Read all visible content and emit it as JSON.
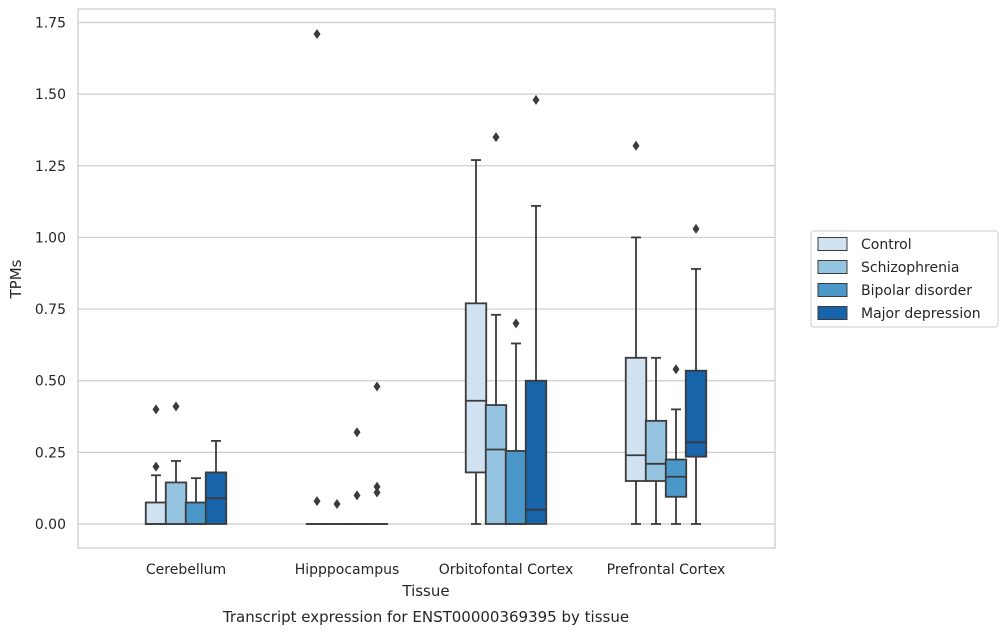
{
  "chart_data": {
    "type": "box",
    "title": "Transcript expression for ENST00000369395 by tissue",
    "xlabel": "Tissue",
    "ylabel": "TPMs",
    "ylim": [
      -0.08,
      1.8
    ],
    "yticks": [
      "0.00",
      "0.25",
      "0.50",
      "0.75",
      "1.00",
      "1.25",
      "1.50",
      "1.75"
    ],
    "categories": [
      "Cerebellum",
      "Hipppocampus",
      "Orbitofontal Cortex",
      "Prefrontal Cortex"
    ],
    "grid": "horizontal",
    "legend_position": "right",
    "series": [
      {
        "name": "Control",
        "color": "#d0e1f2",
        "boxes": [
          {
            "min": 0.0,
            "q1": 0.0,
            "median": 0.0,
            "q3": 0.075,
            "max": 0.17,
            "outliers": [
              0.2,
              0.4
            ]
          },
          {
            "min": 0.0,
            "q1": 0.0,
            "median": 0.0,
            "q3": 0.0,
            "max": 0.0,
            "outliers": [
              0.08,
              1.71
            ]
          },
          {
            "min": 0.0,
            "q1": 0.18,
            "median": 0.43,
            "q3": 0.77,
            "max": 1.27,
            "outliers": []
          },
          {
            "min": 0.0,
            "q1": 0.15,
            "median": 0.24,
            "q3": 0.58,
            "max": 1.0,
            "outliers": [
              1.32
            ]
          }
        ]
      },
      {
        "name": "Schizophrenia",
        "color": "#94c4df",
        "boxes": [
          {
            "min": 0.0,
            "q1": 0.0,
            "median": 0.0,
            "q3": 0.145,
            "max": 0.22,
            "outliers": [
              0.41
            ]
          },
          {
            "min": 0.0,
            "q1": 0.0,
            "median": 0.0,
            "q3": 0.0,
            "max": 0.0,
            "outliers": [
              0.07
            ]
          },
          {
            "min": 0.0,
            "q1": 0.0,
            "median": 0.26,
            "q3": 0.415,
            "max": 0.73,
            "outliers": [
              1.35
            ]
          },
          {
            "min": 0.0,
            "q1": 0.15,
            "median": 0.21,
            "q3": 0.36,
            "max": 0.58,
            "outliers": []
          }
        ]
      },
      {
        "name": "Bipolar disorder",
        "color": "#4a98c9",
        "boxes": [
          {
            "min": 0.0,
            "q1": 0.0,
            "median": 0.0,
            "q3": 0.075,
            "max": 0.16,
            "outliers": []
          },
          {
            "min": 0.0,
            "q1": 0.0,
            "median": 0.0,
            "q3": 0.0,
            "max": 0.0,
            "outliers": [
              0.1,
              0.32
            ]
          },
          {
            "min": 0.0,
            "q1": 0.0,
            "median": 0.0,
            "q3": 0.255,
            "max": 0.63,
            "outliers": [
              0.7
            ]
          },
          {
            "min": 0.0,
            "q1": 0.095,
            "median": 0.165,
            "q3": 0.225,
            "max": 0.4,
            "outliers": [
              0.54
            ]
          }
        ]
      },
      {
        "name": "Major depression",
        "color": "#1764ab",
        "boxes": [
          {
            "min": 0.0,
            "q1": 0.0,
            "median": 0.09,
            "q3": 0.18,
            "max": 0.29,
            "outliers": []
          },
          {
            "min": 0.0,
            "q1": 0.0,
            "median": 0.0,
            "q3": 0.0,
            "max": 0.0,
            "outliers": [
              0.11,
              0.13,
              0.48
            ]
          },
          {
            "min": 0.0,
            "q1": 0.0,
            "median": 0.05,
            "q3": 0.5,
            "max": 1.11,
            "outliers": [
              1.48
            ]
          },
          {
            "min": 0.0,
            "q1": 0.235,
            "median": 0.285,
            "q3": 0.535,
            "max": 0.89,
            "outliers": [
              1.03
            ]
          }
        ]
      }
    ]
  }
}
